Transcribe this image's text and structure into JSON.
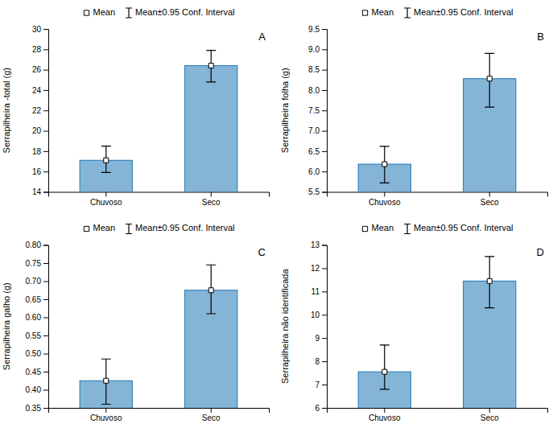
{
  "chart_data": [
    {
      "type": "bar",
      "ylabel": "Serrapilheira -total (g)",
      "annotation": "A",
      "categories": [
        "Chuvoso",
        "Seco"
      ],
      "series": [
        {
          "name": "Mean",
          "values": [
            17.1,
            26.4
          ],
          "marker": "square",
          "error_bars": {
            "name": "Mean±0.95 Conf. Interval",
            "lower": [
              15.9,
              24.8
            ],
            "upper": [
              18.5,
              27.9
            ]
          }
        }
      ],
      "ylim": [
        14,
        30
      ],
      "yticks": [
        14,
        16,
        18,
        20,
        22,
        24,
        26,
        28,
        30
      ],
      "legend": "top",
      "grid": false
    },
    {
      "type": "bar",
      "ylabel": "Serrapilheira folha (g)",
      "annotation": "B",
      "categories": [
        "Chuvoso",
        "Seco"
      ],
      "series": [
        {
          "name": "Mean",
          "values": [
            6.18,
            8.28
          ],
          "marker": "square",
          "error_bars": {
            "name": "Mean±0.95 Conf. Interval",
            "lower": [
              5.72,
              7.58
            ],
            "upper": [
              6.62,
              8.9
            ]
          }
        }
      ],
      "ylim": [
        5.5,
        9.5
      ],
      "yticks": [
        5.5,
        {
          "value": 6.0,
          "label": "6.0"
        },
        6.5,
        {
          "value": 7.0,
          "label": "7.0"
        },
        7.5,
        {
          "value": 8.0,
          "label": "8.0"
        },
        8.5,
        {
          "value": 9.0,
          "label": "9.0"
        },
        9.5
      ],
      "legend": "top",
      "grid": false
    },
    {
      "type": "bar",
      "ylabel": "Serrapilheira galho (g)",
      "annotation": "C",
      "categories": [
        "Chuvoso",
        "Seco"
      ],
      "series": [
        {
          "name": "Mean",
          "values": [
            0.425,
            0.675
          ],
          "marker": "square",
          "error_bars": {
            "name": "Mean±0.95 Conf. Interval",
            "lower": [
              0.36,
              0.61
            ],
            "upper": [
              0.485,
              0.745
            ]
          }
        }
      ],
      "ylim": [
        0.35,
        0.8
      ],
      "yticks": [
        0.35,
        {
          "value": 0.4,
          "label": "0.40"
        },
        0.45,
        {
          "value": 0.5,
          "label": "0.50"
        },
        0.55,
        {
          "value": 0.6,
          "label": "0.60"
        },
        0.65,
        {
          "value": 0.7,
          "label": "0.70"
        },
        0.75,
        {
          "value": 0.8,
          "label": "0.80"
        }
      ],
      "legend": "top",
      "grid": false
    },
    {
      "type": "bar",
      "ylabel": "Serrapilheira não identificada",
      "annotation": "D",
      "categories": [
        "Chuvoso",
        "Seco"
      ],
      "series": [
        {
          "name": "Mean",
          "values": [
            7.55,
            11.45
          ],
          "marker": "square",
          "error_bars": {
            "name": "Mean±0.95 Conf. Interval",
            "lower": [
              6.8,
              10.3
            ],
            "upper": [
              8.7,
              12.5
            ]
          }
        }
      ],
      "ylim": [
        6,
        13
      ],
      "yticks": [
        6,
        7,
        8,
        9,
        10,
        11,
        12,
        13
      ],
      "legend": "top",
      "grid": false
    }
  ]
}
